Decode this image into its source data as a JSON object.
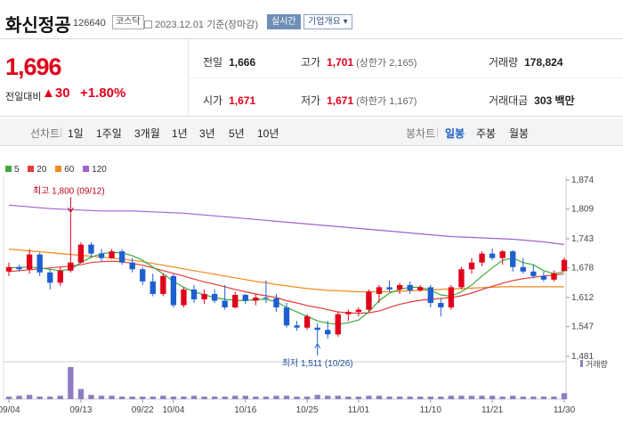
{
  "header": {
    "name": "화신정공",
    "code": "126640",
    "market": "코스닥",
    "date": "2023.12.01 기준(장마감)",
    "realtime_label": "실시간",
    "company_label": "기업개요 ▾"
  },
  "summary": {
    "price": "1,696",
    "change_label": "전일대비",
    "change_value": "▲30",
    "change_pct": "+1.80%",
    "prev_label": "전일",
    "prev": "1,666",
    "high_label": "고가",
    "high": "1,701",
    "upper_limit": "(상한가 2,165)",
    "volume_label": "거래량",
    "volume": "178,824",
    "open_label": "시가",
    "open": "1,671",
    "low_label": "저가",
    "low": "1,671",
    "lower_limit": "(하한가 1,167)",
    "amount_label": "거래대금",
    "amount": "303 백만"
  },
  "tabs": {
    "line_label": "선차트",
    "line": [
      "1일",
      "1주일",
      "3개월",
      "1년",
      "3년",
      "5년",
      "10년"
    ],
    "candle_label": "봉차트",
    "candle": [
      "일봉",
      "주봉",
      "월봉"
    ],
    "active_candle": 0
  },
  "colors": {
    "up": "#e0001b",
    "down": "#1e5fd0",
    "ma5": "#3cab3c",
    "ma20": "#e53b3b",
    "ma60": "#f08a1b",
    "ma120": "#a062d0"
  },
  "chart_data": {
    "type": "candlestick",
    "legend": [
      {
        "name": "5",
        "color": "#3cab3c"
      },
      {
        "name": "20",
        "color": "#e53b3b"
      },
      {
        "name": "60",
        "color": "#f08a1b"
      },
      {
        "name": "120",
        "color": "#a062d0"
      }
    ],
    "y_ticks": [
      "1,874",
      "1,809",
      "1,743",
      "1,678",
      "1,612",
      "1,547",
      "1,481"
    ],
    "ylim": [
      1481,
      1874
    ],
    "x_ticks": [
      {
        "i": 0,
        "label": "09/04"
      },
      {
        "i": 7,
        "label": "09/13"
      },
      {
        "i": 13,
        "label": "09/22"
      },
      {
        "i": 16,
        "label": "10/04"
      },
      {
        "i": 23,
        "label": "10/16"
      },
      {
        "i": 29,
        "label": "10/25"
      },
      {
        "i": 34,
        "label": "11/01"
      },
      {
        "i": 41,
        "label": "11/10"
      },
      {
        "i": 47,
        "label": "11/21"
      },
      {
        "i": 54,
        "label": "11/30"
      }
    ],
    "annotations": [
      {
        "text": "최고 1,800 (09/12)",
        "i": 6,
        "value": 1800,
        "position": "above"
      },
      {
        "text": "최저 1,511 (10/26)",
        "i": 30,
        "value": 1511,
        "position": "below"
      }
    ],
    "volume_label": "거래량",
    "candles": [
      [
        1670,
        1690,
        1660,
        1680
      ],
      [
        1680,
        1685,
        1670,
        1675
      ],
      [
        1675,
        1720,
        1665,
        1708
      ],
      [
        1708,
        1712,
        1660,
        1668
      ],
      [
        1668,
        1675,
        1630,
        1645
      ],
      [
        1645,
        1680,
        1638,
        1672
      ],
      [
        1672,
        1800,
        1668,
        1690
      ],
      [
        1690,
        1735,
        1688,
        1730
      ],
      [
        1730,
        1735,
        1700,
        1710
      ],
      [
        1710,
        1720,
        1692,
        1700
      ],
      [
        1700,
        1720,
        1698,
        1715
      ],
      [
        1715,
        1720,
        1685,
        1690
      ],
      [
        1690,
        1700,
        1668,
        1675
      ],
      [
        1675,
        1680,
        1640,
        1648
      ],
      [
        1648,
        1665,
        1615,
        1620
      ],
      [
        1620,
        1665,
        1615,
        1660
      ],
      [
        1660,
        1665,
        1590,
        1595
      ],
      [
        1595,
        1635,
        1590,
        1630
      ],
      [
        1630,
        1640,
        1600,
        1608
      ],
      [
        1608,
        1630,
        1598,
        1620
      ],
      [
        1620,
        1630,
        1600,
        1605
      ],
      [
        1605,
        1640,
        1585,
        1590
      ],
      [
        1590,
        1625,
        1588,
        1618
      ],
      [
        1618,
        1620,
        1598,
        1605
      ],
      [
        1605,
        1620,
        1595,
        1612
      ],
      [
        1612,
        1650,
        1600,
        1610
      ],
      [
        1610,
        1620,
        1580,
        1590
      ],
      [
        1590,
        1600,
        1545,
        1550
      ],
      [
        1550,
        1560,
        1538,
        1545
      ],
      [
        1545,
        1575,
        1540,
        1570
      ],
      [
        1545,
        1555,
        1511,
        1540
      ],
      [
        1540,
        1560,
        1520,
        1530
      ],
      [
        1530,
        1580,
        1525,
        1575
      ],
      [
        1575,
        1585,
        1560,
        1580
      ],
      [
        1580,
        1590,
        1570,
        1585
      ],
      [
        1585,
        1630,
        1580,
        1625
      ],
      [
        1620,
        1640,
        1600,
        1635
      ],
      [
        1635,
        1650,
        1625,
        1630
      ],
      [
        1630,
        1645,
        1620,
        1640
      ],
      [
        1640,
        1648,
        1620,
        1628
      ],
      [
        1628,
        1640,
        1625,
        1635
      ],
      [
        1635,
        1640,
        1590,
        1600
      ],
      [
        1600,
        1610,
        1570,
        1590
      ],
      [
        1590,
        1640,
        1585,
        1635
      ],
      [
        1635,
        1680,
        1630,
        1675
      ],
      [
        1675,
        1700,
        1665,
        1690
      ],
      [
        1690,
        1715,
        1682,
        1710
      ],
      [
        1710,
        1722,
        1695,
        1700
      ],
      [
        1700,
        1718,
        1685,
        1715
      ],
      [
        1715,
        1718,
        1670,
        1680
      ],
      [
        1680,
        1700,
        1665,
        1670
      ],
      [
        1670,
        1685,
        1655,
        1660
      ],
      [
        1660,
        1670,
        1648,
        1652
      ],
      [
        1652,
        1672,
        1648,
        1666
      ],
      [
        1671,
        1701,
        1671,
        1696
      ]
    ],
    "ma5": [
      1678,
      1679,
      1680,
      1678,
      1675,
      1672,
      1675,
      1690,
      1702,
      1710,
      1712,
      1712,
      1705,
      1695,
      1680,
      1665,
      1648,
      1635,
      1625,
      1618,
      1612,
      1608,
      1606,
      1605,
      1608,
      1608,
      1603,
      1590,
      1580,
      1570,
      1560,
      1555,
      1552,
      1556,
      1562,
      1580,
      1605,
      1622,
      1630,
      1635,
      1635,
      1628,
      1618,
      1615,
      1625,
      1640,
      1660,
      1678,
      1695,
      1700,
      1690,
      1685,
      1672,
      1665,
      1670
    ],
    "ma20": [
      1670,
      1672,
      1674,
      1676,
      1678,
      1680,
      1682,
      1685,
      1690,
      1692,
      1693,
      1692,
      1688,
      1684,
      1678,
      1672,
      1666,
      1660,
      1653,
      1647,
      1642,
      1636,
      1630,
      1625,
      1620,
      1616,
      1612,
      1605,
      1600,
      1594,
      1590,
      1585,
      1580,
      1578,
      1577,
      1578,
      1582,
      1590,
      1597,
      1602,
      1606,
      1608,
      1610,
      1612,
      1616,
      1622,
      1630,
      1637,
      1644,
      1650,
      1654,
      1657,
      1660,
      1662,
      1665
    ],
    "ma60": [
      1720,
      1718,
      1716,
      1714,
      1712,
      1710,
      1708,
      1706,
      1704,
      1702,
      1700,
      1698,
      1695,
      1692,
      1688,
      1684,
      1680,
      1676,
      1672,
      1668,
      1664,
      1660,
      1656,
      1652,
      1648,
      1645,
      1641,
      1638,
      1635,
      1632,
      1630,
      1628,
      1627,
      1626,
      1625,
      1625,
      1625,
      1625,
      1626,
      1627,
      1628,
      1629,
      1630,
      1631,
      1632,
      1633,
      1634,
      1635,
      1636,
      1636,
      1636,
      1636,
      1636,
      1636,
      1636
    ],
    "ma120": [
      1818,
      1816,
      1814,
      1812,
      1810,
      1809,
      1808,
      1807,
      1806,
      1805,
      1805,
      1805,
      1805,
      1804,
      1803,
      1802,
      1801,
      1800,
      1798,
      1796,
      1794,
      1792,
      1790,
      1788,
      1786,
      1784,
      1782,
      1780,
      1778,
      1776,
      1774,
      1772,
      1770,
      1768,
      1766,
      1764,
      1762,
      1760,
      1758,
      1756,
      1754,
      1752,
      1750,
      1748,
      1747,
      1746,
      1745,
      1744,
      1743,
      1742,
      1740,
      1738,
      1736,
      1733,
      1730
    ],
    "volumes": [
      3,
      4,
      5,
      3,
      3,
      4,
      38,
      12,
      5,
      4,
      4,
      3,
      3,
      3,
      3,
      4,
      3,
      3,
      4,
      3,
      3,
      3,
      4,
      4,
      3,
      3,
      4,
      4,
      3,
      3,
      5,
      4,
      4,
      3,
      3,
      4,
      4,
      3,
      3,
      3,
      3,
      3,
      3,
      4,
      4,
      4,
      4,
      4,
      3,
      4,
      3,
      3,
      3,
      3,
      7
    ]
  }
}
